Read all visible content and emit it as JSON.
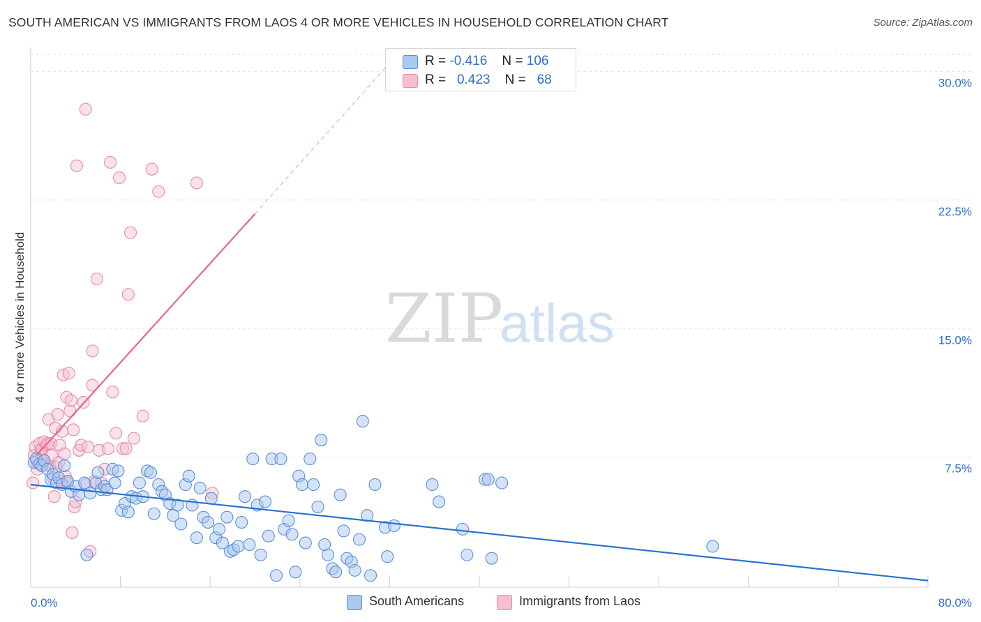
{
  "header": {
    "title": "SOUTH AMERICAN VS IMMIGRANTS FROM LAOS 4 OR MORE VEHICLES IN HOUSEHOLD CORRELATION CHART",
    "source": "Source: ZipAtlas.com"
  },
  "watermark": {
    "zip": "ZIP",
    "atlas": "atlas"
  },
  "legend": {
    "rows": [
      {
        "r_label": "R =",
        "r_value": "-0.416",
        "n_label": "N =",
        "n_value": "106"
      },
      {
        "r_label": "R =",
        "r_value": "0.423",
        "n_label": "N =",
        "n_value": "68"
      }
    ]
  },
  "bottom_legend": {
    "south": "South Americans",
    "laos": "Immigrants from Laos"
  },
  "chart_data": {
    "type": "scatter",
    "title": "SOUTH AMERICAN VS IMMIGRANTS FROM LAOS 4 OR MORE VEHICLES IN HOUSEHOLD CORRELATION CHART",
    "xlabel": "",
    "ylabel": "4 or more Vehicles in Household",
    "xlim": [
      0,
      80
    ],
    "ylim": [
      0,
      31
    ],
    "x_tick_labels": [
      "0.0%",
      "80.0%"
    ],
    "y_ticks": [
      7.5,
      15.0,
      22.5,
      30.0
    ],
    "y_tick_labels": [
      "7.5%",
      "15.0%",
      "22.5%",
      "30.0%"
    ],
    "grid": true,
    "legend_position": "top-center",
    "colors": {
      "south_fill": "#aac8f0",
      "south_stroke": "#5a8fdc",
      "south_line": "#2c6fd0",
      "laos_fill": "#f6bfd0",
      "laos_stroke": "#e68aa8",
      "laos_line": "#e8648c",
      "tick_label": "#2f6fd0"
    },
    "series": [
      {
        "name": "South Americans",
        "r": -0.416,
        "n": 106,
        "trend": {
          "x": [
            0,
            80
          ],
          "y": [
            5.9,
            0.3
          ]
        },
        "points": [
          [
            0.3,
            7.2
          ],
          [
            0.5,
            7.4
          ],
          [
            0.8,
            7.1
          ],
          [
            1.0,
            7.0
          ],
          [
            1.2,
            7.3
          ],
          [
            1.5,
            6.8
          ],
          [
            1.8,
            6.2
          ],
          [
            2.0,
            6.5
          ],
          [
            2.3,
            6.0
          ],
          [
            2.5,
            6.3
          ],
          [
            2.8,
            5.9
          ],
          [
            3.0,
            7.0
          ],
          [
            3.3,
            6.1
          ],
          [
            3.6,
            5.5
          ],
          [
            4.0,
            5.8
          ],
          [
            4.3,
            5.3
          ],
          [
            4.8,
            6.0
          ],
          [
            5.0,
            1.8
          ],
          [
            5.3,
            5.4
          ],
          [
            5.8,
            6.0
          ],
          [
            6.0,
            6.6
          ],
          [
            6.3,
            5.6
          ],
          [
            6.6,
            5.8
          ],
          [
            6.8,
            5.6
          ],
          [
            7.3,
            6.8
          ],
          [
            7.5,
            6.0
          ],
          [
            7.8,
            6.7
          ],
          [
            8.1,
            4.4
          ],
          [
            8.4,
            4.8
          ],
          [
            8.7,
            4.3
          ],
          [
            9.0,
            5.2
          ],
          [
            9.4,
            5.1
          ],
          [
            9.7,
            6.0
          ],
          [
            10.0,
            5.2
          ],
          [
            10.4,
            6.7
          ],
          [
            10.7,
            6.6
          ],
          [
            11.0,
            4.2
          ],
          [
            11.4,
            5.9
          ],
          [
            11.7,
            5.5
          ],
          [
            12.0,
            5.3
          ],
          [
            12.4,
            4.8
          ],
          [
            12.7,
            4.1
          ],
          [
            13.1,
            4.7
          ],
          [
            13.4,
            3.6
          ],
          [
            13.8,
            5.9
          ],
          [
            14.1,
            6.4
          ],
          [
            14.4,
            4.7
          ],
          [
            14.8,
            2.8
          ],
          [
            15.1,
            5.7
          ],
          [
            15.4,
            4.0
          ],
          [
            15.8,
            3.7
          ],
          [
            16.1,
            5.1
          ],
          [
            16.5,
            2.8
          ],
          [
            16.8,
            3.3
          ],
          [
            17.1,
            2.5
          ],
          [
            17.5,
            4.0
          ],
          [
            17.8,
            2.0
          ],
          [
            18.1,
            2.1
          ],
          [
            18.5,
            2.3
          ],
          [
            18.8,
            3.7
          ],
          [
            19.1,
            5.2
          ],
          [
            19.5,
            2.4
          ],
          [
            19.8,
            7.4
          ],
          [
            20.2,
            4.7
          ],
          [
            20.5,
            1.8
          ],
          [
            20.9,
            4.9
          ],
          [
            21.2,
            2.9
          ],
          [
            21.5,
            7.4
          ],
          [
            21.9,
            0.6
          ],
          [
            22.3,
            7.4
          ],
          [
            22.6,
            3.3
          ],
          [
            23.0,
            3.8
          ],
          [
            23.3,
            3.0
          ],
          [
            23.6,
            0.8
          ],
          [
            23.9,
            6.4
          ],
          [
            24.2,
            5.9
          ],
          [
            24.5,
            2.5
          ],
          [
            24.9,
            7.4
          ],
          [
            25.2,
            5.9
          ],
          [
            25.6,
            4.6
          ],
          [
            25.9,
            8.5
          ],
          [
            26.2,
            2.4
          ],
          [
            26.5,
            1.8
          ],
          [
            26.9,
            1.0
          ],
          [
            27.2,
            0.8
          ],
          [
            27.6,
            5.3
          ],
          [
            27.9,
            3.2
          ],
          [
            28.2,
            1.6
          ],
          [
            28.6,
            1.4
          ],
          [
            28.9,
            0.9
          ],
          [
            29.3,
            2.7
          ],
          [
            29.6,
            9.6
          ],
          [
            30.0,
            4.1
          ],
          [
            30.3,
            0.6
          ],
          [
            30.7,
            5.9
          ],
          [
            31.6,
            3.4
          ],
          [
            31.8,
            1.7
          ],
          [
            32.4,
            3.5
          ],
          [
            35.8,
            5.9
          ],
          [
            36.4,
            4.9
          ],
          [
            38.5,
            3.3
          ],
          [
            38.9,
            1.8
          ],
          [
            40.5,
            6.2
          ],
          [
            40.8,
            6.2
          ],
          [
            41.1,
            1.6
          ],
          [
            42.0,
            6.0
          ],
          [
            60.8,
            2.3
          ]
        ]
      },
      {
        "name": "Immigrants from Laos",
        "r": 0.423,
        "n": 68,
        "trend": {
          "x": [
            0.5,
            20
          ],
          "y": [
            7.6,
            21.7
          ]
        },
        "trend_extension": {
          "x": [
            20,
            32
          ],
          "y": [
            21.7,
            30.5
          ]
        },
        "points": [
          [
            0.2,
            6.0
          ],
          [
            0.3,
            7.6
          ],
          [
            0.4,
            8.1
          ],
          [
            0.5,
            7.3
          ],
          [
            0.6,
            6.8
          ],
          [
            0.8,
            8.3
          ],
          [
            0.9,
            7.9
          ],
          [
            1.0,
            8.0
          ],
          [
            1.1,
            7.4
          ],
          [
            1.2,
            8.4
          ],
          [
            1.3,
            7.1
          ],
          [
            1.4,
            8.2
          ],
          [
            1.5,
            8.3
          ],
          [
            1.6,
            9.7
          ],
          [
            1.7,
            7.0
          ],
          [
            1.8,
            8.3
          ],
          [
            1.9,
            7.6
          ],
          [
            2.0,
            6.3
          ],
          [
            2.1,
            5.2
          ],
          [
            2.2,
            9.2
          ],
          [
            2.3,
            6.9
          ],
          [
            2.4,
            10.0
          ],
          [
            2.5,
            7.2
          ],
          [
            2.6,
            8.2
          ],
          [
            2.7,
            6.1
          ],
          [
            2.8,
            9.0
          ],
          [
            2.9,
            12.3
          ],
          [
            3.0,
            7.7
          ],
          [
            3.1,
            6.4
          ],
          [
            3.2,
            11.0
          ],
          [
            3.3,
            6.0
          ],
          [
            3.4,
            12.4
          ],
          [
            3.5,
            10.2
          ],
          [
            3.6,
            10.8
          ],
          [
            3.7,
            3.1
          ],
          [
            3.8,
            9.1
          ],
          [
            3.9,
            4.6
          ],
          [
            4.0,
            4.9
          ],
          [
            4.1,
            24.5
          ],
          [
            4.3,
            7.9
          ],
          [
            4.5,
            8.2
          ],
          [
            4.7,
            10.7
          ],
          [
            4.9,
            5.9
          ],
          [
            4.9,
            27.8
          ],
          [
            5.1,
            8.1
          ],
          [
            5.3,
            2.0
          ],
          [
            5.5,
            13.7
          ],
          [
            5.5,
            11.7
          ],
          [
            5.7,
            6.1
          ],
          [
            5.9,
            17.9
          ],
          [
            6.1,
            7.9
          ],
          [
            6.3,
            6.0
          ],
          [
            6.6,
            6.8
          ],
          [
            6.9,
            8.0
          ],
          [
            7.1,
            24.7
          ],
          [
            7.3,
            11.3
          ],
          [
            7.6,
            8.9
          ],
          [
            7.9,
            23.8
          ],
          [
            8.2,
            8.0
          ],
          [
            8.5,
            8.0
          ],
          [
            8.7,
            17.0
          ],
          [
            8.9,
            20.6
          ],
          [
            9.2,
            8.6
          ],
          [
            10.0,
            9.9
          ],
          [
            10.8,
            24.3
          ],
          [
            11.4,
            23.0
          ],
          [
            14.8,
            23.5
          ],
          [
            16.2,
            5.4
          ]
        ]
      }
    ]
  }
}
